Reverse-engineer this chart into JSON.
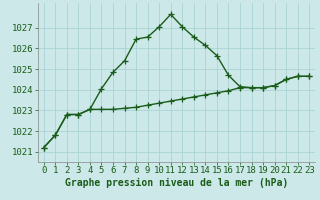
{
  "xlabel": "Graphe pression niveau de la mer (hPa)",
  "bg_color": "#cce8e8",
  "line_color": "#1a5c1a",
  "grid_color": "#aad4d4",
  "x_values": [
    0,
    1,
    2,
    3,
    4,
    5,
    6,
    7,
    8,
    9,
    10,
    11,
    12,
    13,
    14,
    15,
    16,
    17,
    18,
    19,
    20,
    21,
    22,
    23
  ],
  "y_series1": [
    1021.2,
    1021.8,
    1022.8,
    1022.8,
    1023.05,
    1024.05,
    1024.85,
    1025.4,
    1026.45,
    1026.55,
    1027.05,
    1027.65,
    1027.05,
    1026.55,
    1026.15,
    1025.65,
    1024.7,
    1024.15,
    1024.1,
    1024.1,
    1024.2,
    1024.5,
    1024.65,
    1024.65
  ],
  "y_series2": [
    1021.2,
    1021.8,
    1022.8,
    1022.8,
    1023.05,
    1023.05,
    1023.05,
    1023.1,
    1023.15,
    1023.25,
    1023.35,
    1023.45,
    1023.55,
    1023.65,
    1023.75,
    1023.85,
    1023.95,
    1024.1,
    1024.1,
    1024.1,
    1024.2,
    1024.5,
    1024.65,
    1024.65
  ],
  "ylim": [
    1020.5,
    1028.2
  ],
  "yticks": [
    1021,
    1022,
    1023,
    1024,
    1025,
    1026,
    1027
  ],
  "xlim": [
    -0.5,
    23.5
  ],
  "xticks": [
    0,
    1,
    2,
    3,
    4,
    5,
    6,
    7,
    8,
    9,
    10,
    11,
    12,
    13,
    14,
    15,
    16,
    17,
    18,
    19,
    20,
    21,
    22,
    23
  ],
  "marker": "+",
  "markersize": 4,
  "linewidth": 1.0,
  "xlabel_fontsize": 7,
  "tick_fontsize": 6.5,
  "xlabel_bold": true
}
